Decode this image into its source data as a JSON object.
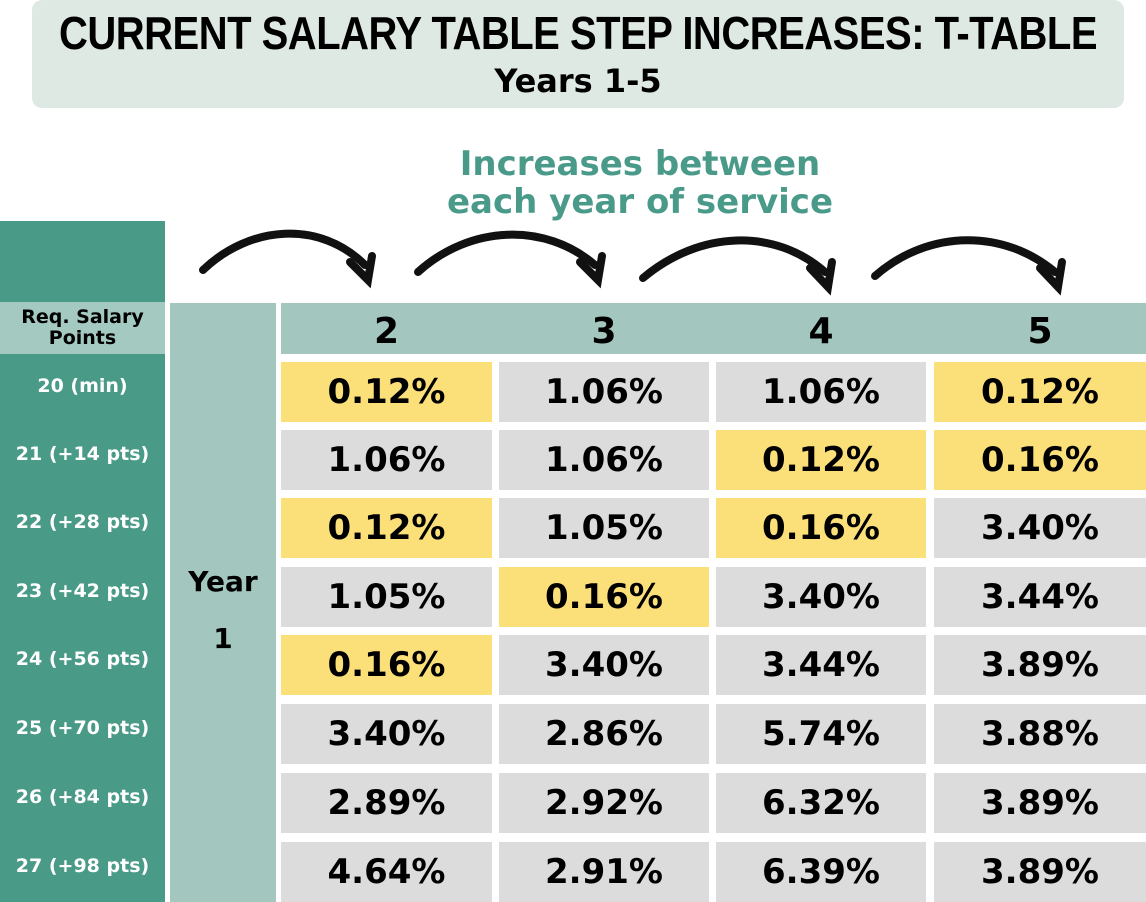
{
  "header": {
    "title": "CURRENT SALARY TABLE STEP INCREASES: T-TABLE",
    "subtitle": "Years 1-5"
  },
  "annotation": "Increases between each year of service",
  "table": {
    "row_header": "Req. Salary Points",
    "group_label": "Year 1",
    "columns": [
      "2",
      "3",
      "4",
      "5"
    ],
    "rows": [
      {
        "label": "20 (min)",
        "cells": [
          {
            "text": "0.12%",
            "highlight": true
          },
          {
            "text": "1.06%",
            "highlight": false
          },
          {
            "text": "1.06%",
            "highlight": false
          },
          {
            "text": "0.12%",
            "highlight": true
          }
        ]
      },
      {
        "label": "21 (+14 pts)",
        "cells": [
          {
            "text": "1.06%",
            "highlight": false
          },
          {
            "text": "1.06%",
            "highlight": false
          },
          {
            "text": "0.12%",
            "highlight": true
          },
          {
            "text": "0.16%",
            "highlight": true
          }
        ]
      },
      {
        "label": "22 (+28 pts)",
        "cells": [
          {
            "text": "0.12%",
            "highlight": true
          },
          {
            "text": "1.05%",
            "highlight": false
          },
          {
            "text": "0.16%",
            "highlight": true
          },
          {
            "text": "3.40%",
            "highlight": false
          }
        ]
      },
      {
        "label": "23 (+42 pts)",
        "cells": [
          {
            "text": "1.05%",
            "highlight": false
          },
          {
            "text": "0.16%",
            "highlight": true
          },
          {
            "text": "3.40%",
            "highlight": false
          },
          {
            "text": "3.44%",
            "highlight": false
          }
        ]
      },
      {
        "label": "24 (+56 pts)",
        "cells": [
          {
            "text": "0.16%",
            "highlight": true
          },
          {
            "text": "3.40%",
            "highlight": false
          },
          {
            "text": "3.44%",
            "highlight": false
          },
          {
            "text": "3.89%",
            "highlight": false
          }
        ]
      },
      {
        "label": "25 (+70 pts)",
        "cells": [
          {
            "text": "3.40%",
            "highlight": false
          },
          {
            "text": "2.86%",
            "highlight": false
          },
          {
            "text": "5.74%",
            "highlight": false
          },
          {
            "text": "3.88%",
            "highlight": false
          }
        ]
      },
      {
        "label": "26 (+84 pts)",
        "cells": [
          {
            "text": "2.89%",
            "highlight": false
          },
          {
            "text": "2.92%",
            "highlight": false
          },
          {
            "text": "6.32%",
            "highlight": false
          },
          {
            "text": "3.89%",
            "highlight": false
          }
        ]
      },
      {
        "label": "27 (+98 pts)",
        "cells": [
          {
            "text": "4.64%",
            "highlight": false
          },
          {
            "text": "2.91%",
            "highlight": false
          },
          {
            "text": "6.39%",
            "highlight": false
          },
          {
            "text": "3.89%",
            "highlight": false
          }
        ]
      }
    ]
  }
}
